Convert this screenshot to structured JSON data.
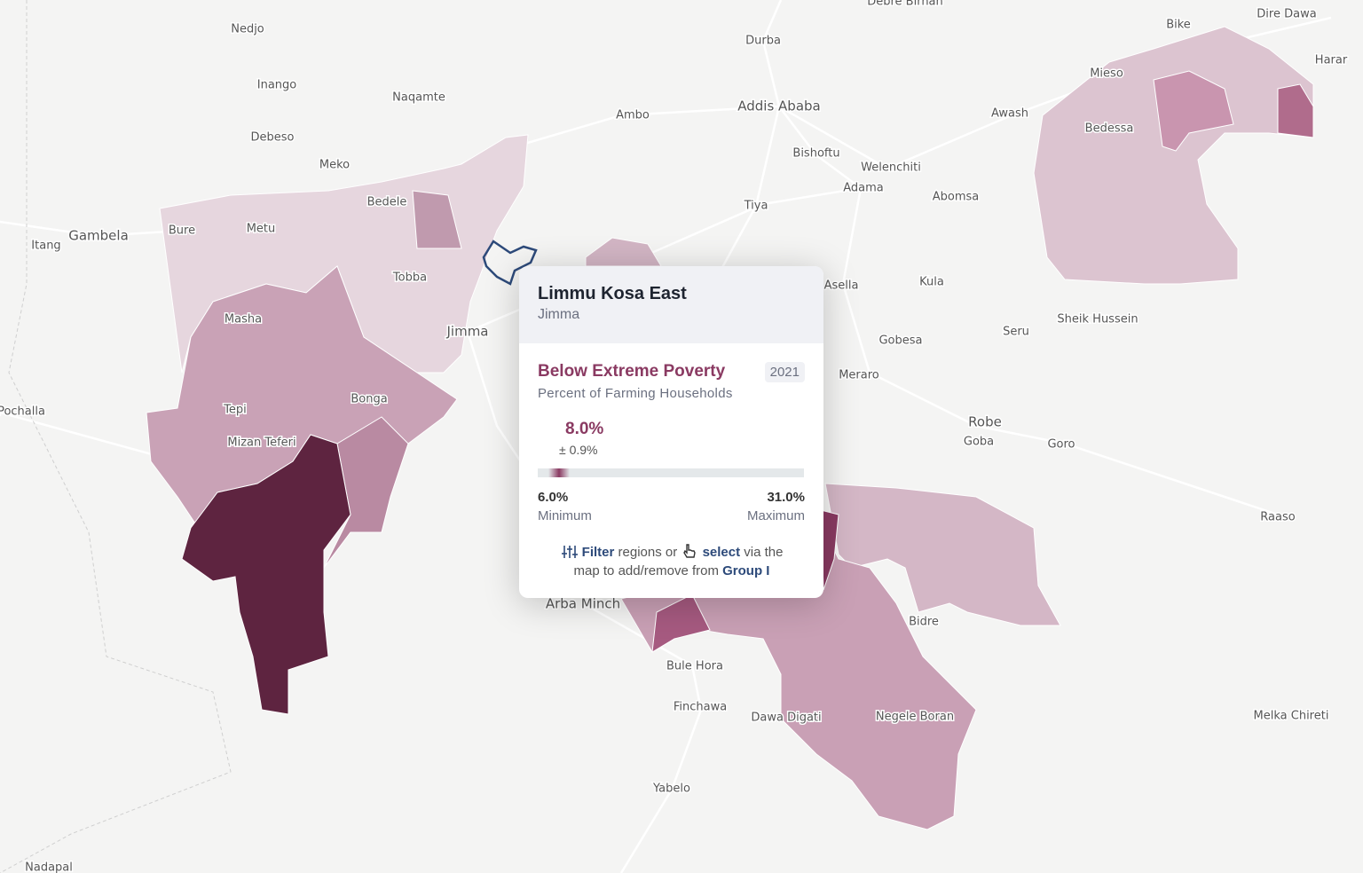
{
  "places": [
    "Debre Birhan",
    "Dire Dawa",
    "Bike",
    "Nedjo",
    "Durba",
    "Harar",
    "Mieso",
    "Inango",
    "Naqamte",
    "Addis Ababa",
    "Ambo",
    "Awash",
    "Bedessa",
    "Debeso",
    "Bishoftu",
    "Meko",
    "Welenchiti",
    "Adama",
    "Abomsa",
    "Bedele",
    "Tiya",
    "Gambela",
    "Bure",
    "Metu",
    "Itang",
    "Tobba",
    "Asella",
    "Kula",
    "Masha",
    "Sheik Hussein",
    "Jimma",
    "Seru",
    "Gobesa",
    "Meraro",
    "Bonga",
    "Pochalla",
    "Tepi",
    "Robe",
    "Goba",
    "Goro",
    "Mizan Teferi",
    "Raaso",
    "Arba Minch",
    "Bidre",
    "Bule Hora",
    "Finchawa",
    "Dawa Digati",
    "Negele Boran",
    "Melka Chireti",
    "Yabelo",
    "Nadapal"
  ],
  "tooltip": {
    "region": "Limmu Kosa East",
    "zone": "Jimma",
    "indicator": "Below Extreme Poverty",
    "year": "2021",
    "unit": "Percent of Farming Households",
    "value": {
      "value": 8.0,
      "label": "8.0%"
    },
    "margin": {
      "value": 0.9,
      "label": "± 0.9%"
    },
    "min": {
      "value": 6.0,
      "label": "6.0%"
    },
    "min_label": "Minimum",
    "max": {
      "value": 31.0,
      "label": "31.0%"
    },
    "max_label": "Maximum",
    "help": [
      "Filter",
      "regions or",
      "select",
      "via the",
      "map to add/remove from",
      "Group I"
    ]
  }
}
